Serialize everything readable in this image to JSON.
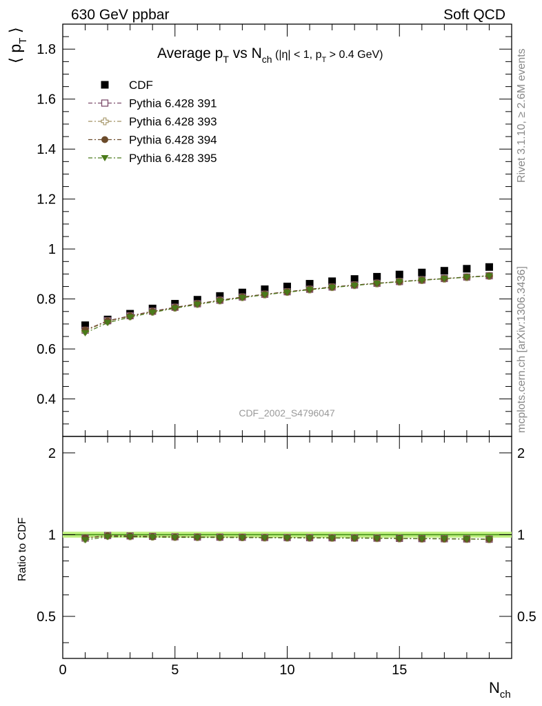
{
  "header": {
    "left": "630 GeV ppbar",
    "right": "Soft QCD"
  },
  "side_labels": {
    "rivet": "Rivet 3.1.10, ≥ 2.6M events",
    "mcplots": "mcplots.cern.ch [arXiv:1306.3436]"
  },
  "chart_data": {
    "type": "scatter",
    "title_main": "Average p",
    "title_sub_T": "T",
    "title_vs": " vs N",
    "title_sub_ch": "ch",
    "title_cut_1": " (|η| < 1, p",
    "title_cut_sub": "T",
    "title_cut_2": " > 0.4 GeV)",
    "analysis_label": "CDF_2002_S4796047",
    "ylabel_main": "⟨ p",
    "ylabel_sub": "T",
    "ylabel_close": " ⟩",
    "ylabel_ratio": "Ratio to CDF",
    "xlabel_main": "N",
    "xlabel_sub": "ch",
    "xlim": [
      0,
      20
    ],
    "ylim_main": [
      0.25,
      1.9
    ],
    "ylim_ratio": [
      0.35,
      2.3
    ],
    "ratio_scale": "log",
    "x_ticks": [
      "0",
      "5",
      "10",
      "15"
    ],
    "y_ticks_main": [
      "0.4",
      "0.6",
      "0.8",
      "1",
      "1.2",
      "1.4",
      "1.6",
      "1.8"
    ],
    "y_ticks_ratio": [
      "0.5",
      "1",
      "2"
    ],
    "x": [
      1,
      2,
      3,
      4,
      5,
      6,
      7,
      8,
      9,
      10,
      11,
      12,
      13,
      14,
      15,
      16,
      17,
      18,
      19
    ],
    "series": [
      {
        "name": "CDF",
        "color": "#000000",
        "marker": "square",
        "values": [
          0.695,
          0.718,
          0.741,
          0.762,
          0.781,
          0.797,
          0.812,
          0.826,
          0.839,
          0.85,
          0.861,
          0.871,
          0.88,
          0.889,
          0.898,
          0.906,
          0.913,
          0.921,
          0.928
        ]
      },
      {
        "name": "Pythia 6.428 391",
        "color": "#7b4a6a",
        "marker": "open-square",
        "values": [
          0.675,
          0.713,
          0.733,
          0.751,
          0.767,
          0.781,
          0.795,
          0.808,
          0.819,
          0.829,
          0.839,
          0.848,
          0.856,
          0.863,
          0.87,
          0.876,
          0.882,
          0.888,
          0.893
        ]
      },
      {
        "name": "Pythia 6.428 393",
        "color": "#a09060",
        "marker": "open-cross",
        "values": [
          0.672,
          0.711,
          0.731,
          0.749,
          0.765,
          0.78,
          0.794,
          0.807,
          0.818,
          0.828,
          0.838,
          0.847,
          0.855,
          0.862,
          0.869,
          0.875,
          0.881,
          0.887,
          0.892
        ]
      },
      {
        "name": "Pythia 6.428 394",
        "color": "#6b4a2a",
        "marker": "circle",
        "values": [
          0.676,
          0.712,
          0.732,
          0.75,
          0.766,
          0.781,
          0.795,
          0.808,
          0.819,
          0.829,
          0.839,
          0.848,
          0.856,
          0.863,
          0.87,
          0.876,
          0.882,
          0.888,
          0.893
        ]
      },
      {
        "name": "Pythia 6.428 395",
        "color": "#4a7a1a",
        "marker": "triangle-down",
        "values": [
          0.664,
          0.705,
          0.727,
          0.746,
          0.763,
          0.778,
          0.792,
          0.805,
          0.817,
          0.827,
          0.837,
          0.846,
          0.854,
          0.862,
          0.869,
          0.875,
          0.881,
          0.887,
          0.892
        ]
      }
    ],
    "ratio_band_color": "#bff080",
    "legend_position": "top-left",
    "grid": false
  }
}
